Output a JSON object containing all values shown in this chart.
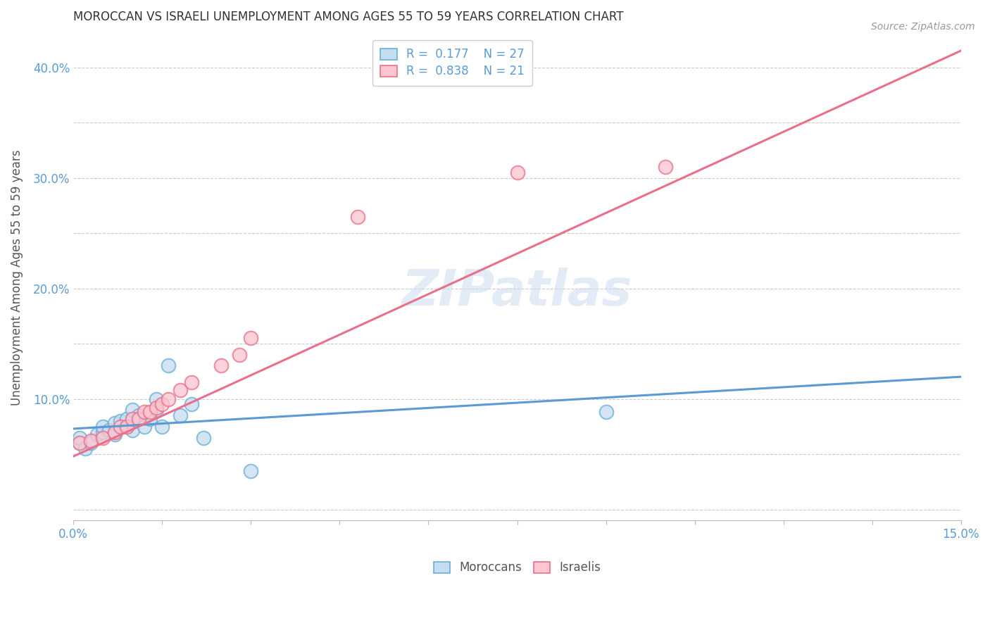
{
  "title": "MOROCCAN VS ISRAELI UNEMPLOYMENT AMONG AGES 55 TO 59 YEARS CORRELATION CHART",
  "source": "Source: ZipAtlas.com",
  "ylabel": "Unemployment Among Ages 55 to 59 years",
  "xlim": [
    0.0,
    0.15
  ],
  "ylim": [
    -0.01,
    0.43
  ],
  "xticks": [
    0.0,
    0.015,
    0.03,
    0.045,
    0.06,
    0.075,
    0.09,
    0.105,
    0.12,
    0.135,
    0.15
  ],
  "xtick_labels": [
    "0.0%",
    "",
    "",
    "",
    "",
    "",
    "",
    "",
    "",
    "",
    "15.0%"
  ],
  "yticks": [
    0.0,
    0.05,
    0.1,
    0.15,
    0.2,
    0.25,
    0.3,
    0.35,
    0.4
  ],
  "ytick_labels": [
    "",
    "",
    "10.0%",
    "",
    "20.0%",
    "",
    "30.0%",
    "",
    "40.0%"
  ],
  "moroccan_R": 0.177,
  "moroccan_N": 27,
  "israeli_R": 0.838,
  "israeli_N": 21,
  "moroccan_face_color": "#c6dcf0",
  "moroccan_edge_color": "#6baed6",
  "israeli_face_color": "#fcc5d0",
  "israeli_edge_color": "#e8708a",
  "moroccan_line_color": "#5b9bd5",
  "israeli_line_color": "#e8708a",
  "watermark": "ZIPatlas",
  "moroccan_scatter_x": [
    0.001,
    0.001,
    0.002,
    0.003,
    0.004,
    0.005,
    0.005,
    0.006,
    0.007,
    0.007,
    0.008,
    0.009,
    0.009,
    0.01,
    0.01,
    0.011,
    0.012,
    0.013,
    0.014,
    0.014,
    0.015,
    0.016,
    0.018,
    0.02,
    0.022,
    0.03,
    0.09
  ],
  "moroccan_scatter_y": [
    0.06,
    0.065,
    0.055,
    0.06,
    0.068,
    0.07,
    0.075,
    0.072,
    0.068,
    0.078,
    0.08,
    0.075,
    0.082,
    0.072,
    0.09,
    0.085,
    0.075,
    0.082,
    0.09,
    0.1,
    0.075,
    0.13,
    0.085,
    0.095,
    0.065,
    0.035,
    0.088
  ],
  "israeli_scatter_x": [
    0.001,
    0.003,
    0.005,
    0.007,
    0.008,
    0.009,
    0.01,
    0.011,
    0.012,
    0.013,
    0.014,
    0.015,
    0.016,
    0.018,
    0.02,
    0.025,
    0.028,
    0.03,
    0.048,
    0.075,
    0.1
  ],
  "israeli_scatter_y": [
    0.06,
    0.062,
    0.065,
    0.07,
    0.075,
    0.075,
    0.082,
    0.082,
    0.088,
    0.088,
    0.092,
    0.095,
    0.1,
    0.108,
    0.115,
    0.13,
    0.14,
    0.155,
    0.265,
    0.305,
    0.31
  ],
  "moroccan_line_x": [
    0.0,
    0.15
  ],
  "moroccan_line_y": [
    0.073,
    0.12
  ],
  "israeli_line_x": [
    0.0,
    0.15
  ],
  "israeli_line_y": [
    0.048,
    0.415
  ]
}
